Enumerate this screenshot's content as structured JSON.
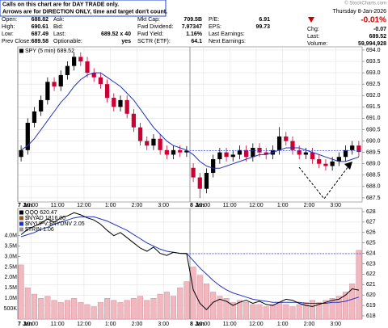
{
  "note": [
    "Calls on this chart are for DAY TRADE only.",
    "Arrows are for DIRECTION ONLY, time and target don't count."
  ],
  "copyright": "© StockCharts.com",
  "date": "Thursday  8-Jan-2026",
  "change_pct": "-0.01%",
  "quote": [
    [
      {
        "label": "Open:",
        "value": "688.82"
      },
      {
        "label": "Ask:"
      },
      {
        "label": "Mkt Cap:",
        "value": "709.5B"
      },
      {
        "label": "P/E:",
        "value": "6.91"
      }
    ],
    [
      {
        "label": "High:",
        "value": "690.61"
      },
      {
        "label": "Bid:"
      },
      {
        "label": "Fwd Dividend:",
        "value": "7.97347"
      },
      {
        "label": "EPS:",
        "value": "99.73"
      }
    ],
    [
      {
        "label": "Low:",
        "value": "687.49"
      },
      {
        "label": "Last:",
        "value": "689.52 x 40"
      },
      {
        "label": "Fwd Yield:",
        "value": "1.16%"
      },
      {
        "label": "Last Earnings:"
      }
    ],
    [
      {
        "label": "Prev Close:",
        "value": "689.58"
      },
      {
        "label": "Optionable:",
        "value": "yes"
      },
      {
        "label": "SCTR (ETF):",
        "value": "64.1"
      },
      {
        "label": "Next Earnings:"
      }
    ]
  ],
  "summary": [
    {
      "label": "Chg:",
      "value": "-0.07"
    },
    {
      "label": "Last:",
      "value": "689.52"
    },
    {
      "label": "Volume:",
      "value": "59,994,928"
    }
  ],
  "chart_data": [
    {
      "type": "candlestick",
      "legend": [
        "SPY (5 min) 689.52"
      ],
      "categories": [
        "7 Jan",
        null,
        "10:00",
        null,
        null,
        null,
        "11:00",
        null,
        null,
        null,
        "12:00",
        null,
        null,
        null,
        "1:00",
        null,
        null,
        null,
        "2:00",
        null,
        null,
        null,
        "3:00",
        null,
        null,
        null,
        "8 Jan",
        null,
        "10:00",
        null,
        null,
        null,
        "11:00",
        null,
        null,
        null,
        "12:00",
        null,
        null,
        null,
        "1:00",
        null,
        null,
        null,
        "2:00",
        null,
        null,
        null,
        "3:00",
        null,
        null,
        null
      ],
      "open": [
        689.3,
        689.6,
        690.8,
        691.3,
        691.8,
        692.6,
        692.4,
        692.9,
        693.3,
        693.7,
        693.5,
        693.0,
        692.8,
        692.5,
        691.9,
        691.5,
        691.8,
        691.2,
        690.6,
        690.0,
        689.8,
        690.1,
        689.6,
        689.4,
        689.6,
        689.5,
        688.82,
        688.4,
        687.9,
        688.6,
        689.2,
        689.5,
        689.3,
        689.4,
        689.6,
        689.3,
        689.7,
        689.5,
        689.4,
        689.6,
        690.2,
        690.0,
        689.6,
        689.4,
        689.5,
        689.2,
        689.0,
        688.9,
        689.1,
        689.3,
        689.6,
        689.8
      ],
      "high": [
        689.8,
        691.0,
        691.5,
        692.0,
        692.8,
        692.8,
        693.1,
        693.5,
        693.9,
        693.9,
        693.7,
        693.2,
        693.0,
        692.7,
        692.1,
        692.0,
        692.0,
        691.4,
        690.8,
        690.2,
        690.3,
        690.3,
        689.8,
        689.8,
        689.8,
        689.78,
        689.02,
        688.6,
        688.8,
        689.4,
        689.7,
        689.7,
        689.6,
        689.8,
        689.8,
        689.9,
        689.9,
        689.7,
        689.8,
        690.61,
        690.4,
        690.2,
        689.8,
        689.7,
        689.7,
        689.4,
        689.2,
        689.3,
        689.5,
        689.8,
        690.0,
        690.0
      ],
      "low": [
        689.1,
        689.4,
        690.6,
        691.1,
        691.6,
        692.2,
        692.2,
        692.7,
        693.1,
        693.3,
        692.8,
        692.6,
        692.3,
        691.7,
        691.3,
        691.3,
        691.0,
        690.4,
        689.8,
        689.6,
        689.6,
        689.4,
        689.2,
        689.2,
        689.3,
        689.3,
        688.2,
        687.49,
        687.7,
        688.4,
        689.0,
        689.1,
        689.1,
        689.2,
        689.1,
        689.1,
        689.3,
        689.2,
        689.2,
        689.4,
        689.8,
        689.4,
        689.2,
        689.2,
        689.0,
        688.8,
        688.7,
        688.7,
        688.9,
        689.1,
        689.4,
        689.3
      ],
      "close": [
        689.6,
        690.8,
        691.3,
        691.8,
        692.6,
        692.4,
        692.9,
        693.3,
        693.7,
        693.5,
        693.0,
        692.8,
        692.5,
        691.9,
        691.5,
        691.8,
        691.2,
        690.6,
        690.0,
        689.8,
        690.1,
        689.6,
        689.4,
        689.6,
        689.5,
        689.58,
        688.4,
        687.9,
        688.6,
        689.2,
        689.5,
        689.3,
        689.4,
        689.6,
        689.3,
        689.7,
        689.5,
        689.4,
        689.6,
        690.2,
        690.0,
        689.6,
        689.4,
        689.5,
        689.2,
        689.0,
        688.9,
        689.1,
        689.3,
        689.6,
        689.8,
        689.52
      ],
      "up_color": "#000000",
      "down_color": "#cc0033",
      "series": [
        {
          "color": "#2233bb",
          "values": [
            689.6,
            689.8,
            690.1,
            690.5,
            690.9,
            691.3,
            691.7,
            692.0,
            692.4,
            692.7,
            692.9,
            693.0,
            693.0,
            692.8,
            692.6,
            692.4,
            692.1,
            691.8,
            691.4,
            691.0,
            690.6,
            690.3,
            690.0,
            689.8,
            689.7,
            689.6,
            689.4,
            689.1,
            688.9,
            688.8,
            688.8,
            688.9,
            689.0,
            689.1,
            689.2,
            689.3,
            689.4,
            689.4,
            689.5,
            689.6,
            689.7,
            689.7,
            689.7,
            689.6,
            689.5,
            689.4,
            689.3,
            689.2,
            689.1,
            689.1,
            689.2,
            689.3
          ]
        }
      ],
      "reference_line": {
        "value": 689.58,
        "color": "#3344ee"
      },
      "ylim": [
        687.32,
        694.14
      ],
      "yticks": [
        687.5,
        {
          "value": 688,
          "label": "688.0"
        },
        688.5,
        {
          "value": 689,
          "label": "689.0"
        },
        689.5,
        {
          "value": 690,
          "label": "690.0"
        },
        690.5,
        {
          "value": 691,
          "label": "691.0"
        },
        691.5,
        {
          "value": 692,
          "label": "692.0"
        },
        692.5,
        {
          "value": 693,
          "label": "693.0"
        },
        693.5,
        {
          "value": 694,
          "label": "694.0"
        }
      ],
      "grid": true
    },
    {
      "type": "line",
      "legend": [
        "QQQ 620.47",
        "$NYAD 1816.00",
        "$NYUPV:$NYDNV 2.05",
        "$TRIN 1.06"
      ],
      "legend_colors": [
        "#000000",
        "#8b5a2b",
        "#2233bb",
        "#999999"
      ],
      "categories": [
        "7 Jan",
        null,
        "10:00",
        null,
        null,
        null,
        "11:00",
        null,
        null,
        null,
        "12:00",
        null,
        null,
        null,
        "1:00",
        null,
        null,
        null,
        "2:00",
        null,
        null,
        null,
        "3:00",
        null,
        null,
        null,
        "8 Jan",
        null,
        "10:00",
        null,
        null,
        null,
        "11:00",
        null,
        null,
        null,
        "12:00",
        null,
        null,
        null,
        "1:00",
        null,
        null,
        null,
        "2:00",
        null,
        null,
        null,
        "3:00",
        null,
        null,
        null
      ],
      "series": [
        {
          "color": "#f2b8c0",
          "axis": "y2",
          "values": [
            2600000,
            1500000,
            1200000,
            1000000,
            1100000,
            900000,
            800000,
            900000,
            1000000,
            800000,
            700000,
            600000,
            800000,
            1000000,
            900000,
            800000,
            900000,
            1000000,
            1100000,
            900000,
            1000000,
            1200000,
            1300000,
            1100000,
            1500000,
            1800000,
            2500000,
            2100000,
            1700000,
            1300000,
            1100000,
            1000000,
            800000,
            900000,
            800000,
            700000,
            700000,
            600000,
            700000,
            800000,
            700000,
            600000,
            700000,
            800000,
            900000,
            800000,
            900000,
            1000000,
            1100000,
            1300000,
            1700000,
            3300000
          ]
        },
        {
          "color": "#2233bb",
          "values": [
            625.6,
            625.8,
            626.0,
            626.3,
            626.5,
            626.8,
            627.0,
            627.2,
            627.4,
            627.5,
            627.5,
            627.5,
            627.3,
            627.1,
            626.8,
            626.5,
            626.2,
            625.8,
            625.4,
            625.0,
            624.7,
            624.4,
            624.2,
            624.1,
            624.0,
            624.0,
            623.3,
            622.6,
            622.0,
            621.4,
            620.9,
            620.5,
            620.2,
            620.0,
            619.8,
            619.6,
            619.5,
            619.4,
            619.3,
            619.3,
            619.3,
            619.3,
            619.3,
            619.2,
            619.2,
            619.2,
            619.2,
            619.3,
            619.3,
            619.4,
            619.6,
            619.8
          ]
        },
        {
          "color": "#000000",
          "values": [
            625.8,
            626.3,
            626.6,
            626.9,
            627.3,
            627.0,
            627.4,
            627.6,
            627.9,
            627.7,
            627.4,
            627.2,
            626.8,
            626.2,
            625.7,
            626.0,
            625.5,
            625.0,
            624.5,
            624.2,
            624.6,
            624.0,
            623.8,
            624.1,
            624.0,
            623.97,
            620.5,
            619.2,
            618.6,
            619.3,
            619.6,
            619.4,
            619.0,
            619.3,
            619.5,
            619.2,
            619.4,
            619.1,
            619.0,
            619.3,
            619.6,
            619.5,
            619.2,
            619.0,
            618.9,
            619.1,
            619.3,
            619.5,
            619.6,
            620.0,
            620.6,
            620.47
          ]
        }
      ],
      "reference_line": {
        "value": 623.97,
        "color": "#3344ee"
      },
      "ylim": [
        617.69,
        628.31
      ],
      "yticks": [
        618,
        619,
        620,
        621,
        622,
        623,
        624,
        625,
        626,
        627,
        628
      ],
      "y2lim": [
        0,
        5310000
      ],
      "y2ticks": [
        {
          "value": 500000,
          "label": "500K"
        },
        {
          "value": 1000000,
          "label": "1.0M"
        },
        {
          "value": 1500000,
          "label": "1.5M"
        },
        {
          "value": 2000000,
          "label": "2.0M"
        },
        {
          "value": 2500000,
          "label": "2.5M"
        },
        {
          "value": 3000000,
          "label": "3.0M"
        },
        {
          "value": 3500000,
          "label": "3.5M"
        },
        {
          "value": 4000000,
          "label": "4.0M"
        }
      ],
      "grid": true
    }
  ]
}
